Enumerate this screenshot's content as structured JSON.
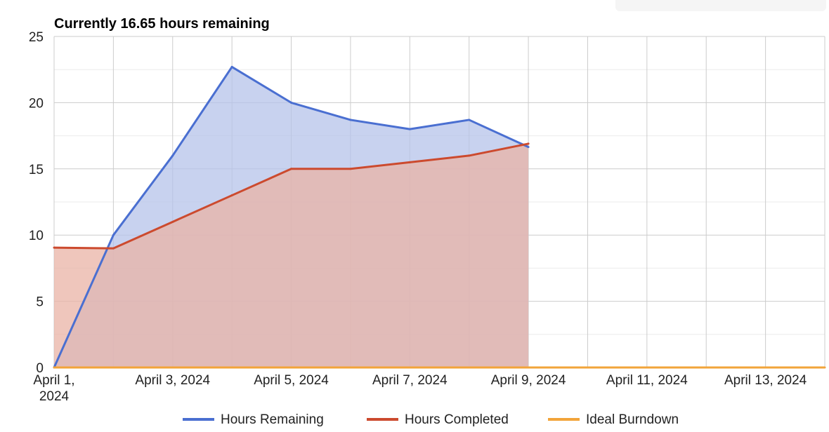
{
  "chart_data": {
    "type": "area",
    "title": "Currently 16.65 hours remaining",
    "xlabel": "",
    "ylabel": "",
    "x": [
      "2024-04-01",
      "2024-04-02",
      "2024-04-03",
      "2024-04-04",
      "2024-04-05",
      "2024-04-06",
      "2024-04-07",
      "2024-04-08",
      "2024-04-09"
    ],
    "series": [
      {
        "name": "Hours Remaining",
        "color": "#4a6fd1",
        "fill": "#b6c3ea",
        "x": [
          "2024-04-01",
          "2024-04-02",
          "2024-04-03",
          "2024-04-04",
          "2024-04-05",
          "2024-04-06",
          "2024-04-07",
          "2024-04-08",
          "2024-04-09"
        ],
        "values": [
          0,
          10,
          16,
          22.7,
          20,
          18.7,
          18,
          18.7,
          16.65
        ]
      },
      {
        "name": "Hours Completed",
        "color": "#cc4a2e",
        "fill": "#eab3a6",
        "x": [
          "2024-04-01",
          "2024-04-02",
          "2024-04-03",
          "2024-04-04",
          "2024-04-05",
          "2024-04-06",
          "2024-04-07",
          "2024-04-08",
          "2024-04-09"
        ],
        "values": [
          9.05,
          9,
          11,
          13,
          15,
          15,
          15.5,
          16,
          16.9
        ]
      },
      {
        "name": "Ideal Burndown",
        "color": "#f2a43a",
        "x": [
          "2024-04-01",
          "2024-04-14"
        ],
        "values": [
          0,
          0
        ]
      }
    ],
    "ylim": [
      0,
      25
    ],
    "yticks": [
      0,
      5,
      10,
      15,
      20,
      25
    ],
    "xlim": [
      "2024-04-01",
      "2024-04-14"
    ],
    "xticks": [
      "2024-04-01",
      "2024-04-03",
      "2024-04-05",
      "2024-04-07",
      "2024-04-09",
      "2024-04-11",
      "2024-04-13"
    ],
    "xtick_labels": [
      [
        "April 1,",
        "2024"
      ],
      [
        "April 3, 2024"
      ],
      [
        "April 5, 2024"
      ],
      [
        "April 7, 2024"
      ],
      [
        "April 9, 2024"
      ],
      [
        "April 11, 2024"
      ],
      [
        "April 13, 2024"
      ]
    ],
    "grid": true,
    "legend_position": "bottom"
  }
}
